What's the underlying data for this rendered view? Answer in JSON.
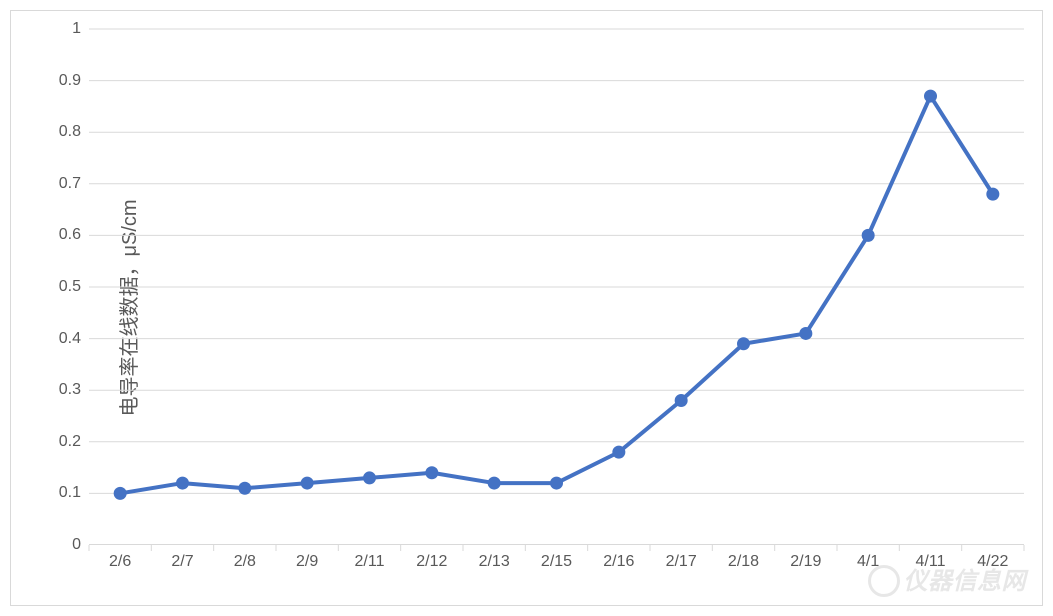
{
  "chart": {
    "type": "line",
    "ylabel": "电导率在线数据，μS/cm",
    "ylim": [
      0,
      1
    ],
    "ytick_step": 0.1,
    "yticks": [
      "0",
      "0.1",
      "0.2",
      "0.3",
      "0.4",
      "0.5",
      "0.6",
      "0.7",
      "0.8",
      "0.9",
      "1"
    ],
    "categories": [
      "2/6",
      "2/7",
      "2/8",
      "2/9",
      "2/11",
      "2/12",
      "2/13",
      "2/15",
      "2/16",
      "2/17",
      "2/18",
      "2/19",
      "4/1",
      "4/11",
      "4/22"
    ],
    "values": [
      0.1,
      0.12,
      0.11,
      0.12,
      0.13,
      0.14,
      0.12,
      0.12,
      0.18,
      0.28,
      0.39,
      0.41,
      0.6,
      0.87,
      0.68
    ],
    "line_color": "#4472c4",
    "marker_color": "#4472c4",
    "line_width": 4,
    "marker_radius": 6.5,
    "grid_color": "#d9d9d9",
    "axis_color": "#d9d9d9",
    "xtick_mark_color": "#d9d9d9",
    "background_color": "#ffffff",
    "border_color": "#d9d9d9",
    "text_color": "#595959",
    "label_fontsize": 16,
    "ylabel_fontsize": 20
  },
  "watermark": {
    "text": "仪器信息网"
  }
}
